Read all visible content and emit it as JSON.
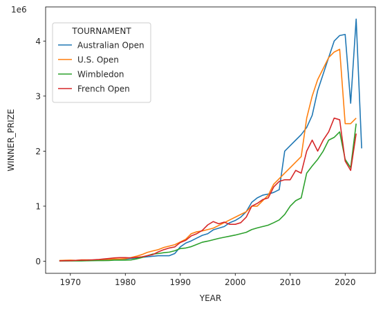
{
  "chart_data": {
    "type": "line",
    "title": "",
    "xlabel": "YEAR",
    "ylabel": "WINNER_PRIZE",
    "y_offset_text": "1e6",
    "xlim": [
      1965.5,
      2025.5
    ],
    "ylim": [
      -0.22,
      4.62
    ],
    "y_multiplier": 1000000,
    "x_ticks": [
      1970,
      1980,
      1990,
      2000,
      2010,
      2020
    ],
    "x_tick_labels": [
      "1970",
      "1980",
      "1990",
      "2000",
      "2010",
      "2020"
    ],
    "y_ticks": [
      0,
      1,
      2,
      3,
      4
    ],
    "y_tick_labels": [
      "0",
      "1",
      "2",
      "3",
      "4"
    ],
    "grid": false,
    "legend": {
      "title": "TOURNAMENT",
      "placement": "top-left"
    },
    "series": [
      {
        "name": "Australian Open",
        "color": "#1f77b4",
        "x": [
          1968,
          1969,
          1970,
          1971,
          1972,
          1973,
          1974,
          1975,
          1976,
          1977,
          1978,
          1979,
          1980,
          1981,
          1982,
          1983,
          1984,
          1985,
          1986,
          1987,
          1988,
          1989,
          1990,
          1991,
          1992,
          1993,
          1994,
          1995,
          1996,
          1997,
          1998,
          1999,
          2000,
          2001,
          2002,
          2003,
          2004,
          2005,
          2006,
          2007,
          2008,
          2009,
          2010,
          2011,
          2012,
          2013,
          2014,
          2015,
          2016,
          2017,
          2018,
          2019,
          2020,
          2021,
          2022,
          2023
        ],
        "y": [
          0.005,
          0.005,
          0.008,
          0.01,
          0.01,
          0.015,
          0.02,
          0.02,
          0.025,
          0.03,
          0.03,
          0.035,
          0.04,
          0.05,
          0.06,
          0.07,
          0.08,
          0.09,
          0.1,
          0.1,
          0.1,
          0.14,
          0.26,
          0.33,
          0.37,
          0.42,
          0.47,
          0.5,
          0.57,
          0.6,
          0.63,
          0.7,
          0.74,
          0.8,
          0.9,
          1.07,
          1.15,
          1.2,
          1.22,
          1.25,
          1.3,
          2.0,
          2.1,
          2.2,
          2.3,
          2.43,
          2.65,
          3.1,
          3.4,
          3.7,
          4.0,
          4.1,
          4.12,
          2.87,
          4.4,
          2.05
        ]
      },
      {
        "name": "U.S. Open",
        "color": "#ff7f0e",
        "x": [
          1968,
          1969,
          1970,
          1971,
          1972,
          1973,
          1974,
          1975,
          1976,
          1977,
          1978,
          1979,
          1980,
          1981,
          1982,
          1983,
          1984,
          1985,
          1986,
          1987,
          1988,
          1989,
          1990,
          1991,
          1992,
          1993,
          1994,
          1995,
          1996,
          1997,
          1998,
          1999,
          2000,
          2001,
          2002,
          2003,
          2004,
          2005,
          2006,
          2007,
          2008,
          2009,
          2010,
          2011,
          2012,
          2013,
          2014,
          2015,
          2016,
          2017,
          2018,
          2019,
          2020,
          2021,
          2022
        ],
        "y": [
          0.014,
          0.016,
          0.02,
          0.015,
          0.025,
          0.025,
          0.022,
          0.025,
          0.03,
          0.033,
          0.038,
          0.039,
          0.046,
          0.066,
          0.09,
          0.12,
          0.16,
          0.187,
          0.21,
          0.25,
          0.275,
          0.3,
          0.35,
          0.4,
          0.5,
          0.535,
          0.55,
          0.575,
          0.6,
          0.65,
          0.7,
          0.75,
          0.8,
          0.85,
          0.9,
          1.0,
          1.0,
          1.1,
          1.2,
          1.4,
          1.5,
          1.6,
          1.7,
          1.8,
          1.9,
          2.6,
          3.0,
          3.3,
          3.5,
          3.7,
          3.8,
          3.85,
          2.5,
          2.5,
          2.6
        ]
      },
      {
        "name": "Wimbledon",
        "color": "#2ca02c",
        "x": [
          1968,
          1969,
          1970,
          1971,
          1972,
          1973,
          1974,
          1975,
          1976,
          1977,
          1978,
          1979,
          1980,
          1981,
          1982,
          1983,
          1984,
          1985,
          1986,
          1987,
          1988,
          1989,
          1990,
          1991,
          1992,
          1993,
          1994,
          1995,
          1996,
          1997,
          1998,
          1999,
          2000,
          2001,
          2002,
          2003,
          2004,
          2005,
          2006,
          2007,
          2008,
          2009,
          2010,
          2011,
          2012,
          2013,
          2014,
          2015,
          2016,
          2017,
          2018,
          2019,
          2020,
          2021,
          2022
        ],
        "y": [
          0.004,
          0.005,
          0.005,
          0.005,
          0.006,
          0.008,
          0.01,
          0.011,
          0.012,
          0.013,
          0.02,
          0.02,
          0.02,
          0.022,
          0.042,
          0.066,
          0.1,
          0.13,
          0.14,
          0.155,
          0.165,
          0.19,
          0.23,
          0.24,
          0.265,
          0.305,
          0.345,
          0.365,
          0.39,
          0.415,
          0.435,
          0.455,
          0.475,
          0.5,
          0.525,
          0.575,
          0.605,
          0.63,
          0.655,
          0.7,
          0.75,
          0.85,
          1.0,
          1.1,
          1.15,
          1.6,
          1.73,
          1.85,
          2.0,
          2.2,
          2.25,
          2.35,
          1.85,
          1.7,
          2.5
        ]
      },
      {
        "name": "French Open",
        "color": "#d62728",
        "x": [
          1968,
          1969,
          1970,
          1971,
          1972,
          1973,
          1974,
          1975,
          1976,
          1977,
          1978,
          1979,
          1980,
          1981,
          1982,
          1983,
          1984,
          1985,
          1986,
          1987,
          1988,
          1989,
          1990,
          1991,
          1992,
          1993,
          1994,
          1995,
          1996,
          1997,
          1998,
          1999,
          2000,
          2001,
          2002,
          2003,
          2004,
          2005,
          2006,
          2007,
          2008,
          2009,
          2010,
          2011,
          2012,
          2013,
          2014,
          2015,
          2016,
          2017,
          2018,
          2019,
          2020,
          2021,
          2022
        ],
        "y": [
          0.005,
          0.01,
          0.01,
          0.015,
          0.02,
          0.02,
          0.025,
          0.03,
          0.04,
          0.05,
          0.06,
          0.065,
          0.065,
          0.06,
          0.07,
          0.08,
          0.1,
          0.12,
          0.17,
          0.21,
          0.24,
          0.26,
          0.34,
          0.38,
          0.46,
          0.5,
          0.56,
          0.66,
          0.72,
          0.68,
          0.71,
          0.67,
          0.67,
          0.7,
          0.8,
          1.0,
          1.05,
          1.12,
          1.15,
          1.35,
          1.45,
          1.48,
          1.48,
          1.65,
          1.6,
          2.0,
          2.2,
          2.0,
          2.2,
          2.35,
          2.6,
          2.57,
          1.82,
          1.65,
          2.32
        ]
      }
    ]
  }
}
